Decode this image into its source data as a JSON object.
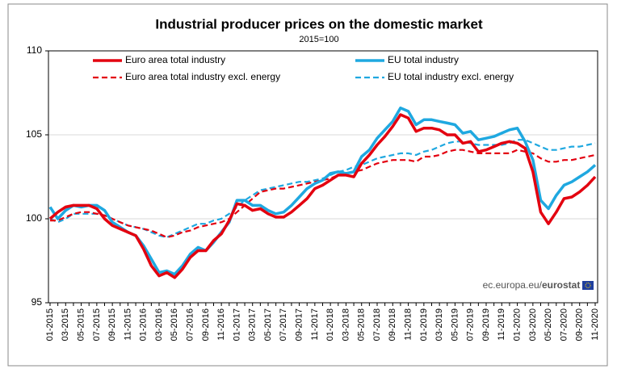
{
  "chart_data": {
    "type": "line",
    "title": "Industrial producer prices on the domestic market",
    "subtitle": "2015=100",
    "source": "ec.europa.eu/",
    "source_brand": "eurostat",
    "categories": [
      "01-2015",
      null,
      "03-2015",
      null,
      "05-2015",
      null,
      "07-2015",
      null,
      "09-2015",
      null,
      "11-2015",
      null,
      "01-2016",
      null,
      "03-2016",
      null,
      "05-2016",
      null,
      "07-2016",
      null,
      "09-2016",
      null,
      "11-2016",
      null,
      "01-2017",
      null,
      "03-2017",
      null,
      "05-2017",
      null,
      "07-2017",
      null,
      "09-2017",
      null,
      "11-2017",
      null,
      "01-2018",
      null,
      "03-2018",
      null,
      "05-2018",
      null,
      "07-2018",
      null,
      "09-2018",
      null,
      "11-2018",
      null,
      "01-2019",
      null,
      "03-2019",
      null,
      "05-2019",
      null,
      "07-2019",
      null,
      "09-2019",
      null,
      "11-2019",
      null,
      "01-2020",
      null,
      "03-2020",
      null,
      "05-2020",
      null,
      "07-2020",
      null,
      "09-2020",
      null,
      "11-2020"
    ],
    "series": [
      {
        "name": "Euro area total industry",
        "color": "#e3000f",
        "dashed": false,
        "values": [
          100.0,
          100.4,
          100.7,
          100.8,
          100.8,
          100.8,
          100.6,
          100.0,
          99.6,
          99.4,
          99.2,
          99.0,
          98.2,
          97.2,
          96.6,
          96.8,
          96.5,
          97.0,
          97.7,
          98.1,
          98.1,
          98.7,
          99.1,
          99.9,
          100.9,
          100.8,
          100.5,
          100.6,
          100.3,
          100.1,
          100.1,
          100.4,
          100.8,
          101.2,
          101.8,
          102.0,
          102.3,
          102.6,
          102.6,
          102.5,
          103.3,
          103.8,
          104.4,
          104.9,
          105.5,
          106.2,
          106.0,
          105.2,
          105.4,
          105.4,
          105.3,
          105.0,
          105.0,
          104.5,
          104.6,
          104.0,
          104.1,
          104.3,
          104.5,
          104.6,
          104.5,
          104.2,
          102.8,
          100.4,
          99.7,
          100.4,
          101.2,
          101.3,
          101.6,
          102.0,
          102.5
        ]
      },
      {
        "name": "EU total industry",
        "color": "#1fa8e0",
        "dashed": false,
        "values": [
          100.7,
          100.0,
          100.5,
          100.8,
          100.7,
          100.8,
          100.8,
          100.5,
          99.8,
          99.5,
          99.2,
          99.0,
          98.4,
          97.6,
          96.8,
          96.9,
          96.7,
          97.2,
          97.9,
          98.3,
          98.1,
          98.6,
          99.2,
          99.8,
          101.1,
          101.1,
          100.8,
          100.8,
          100.5,
          100.3,
          100.4,
          100.8,
          101.3,
          101.8,
          102.1,
          102.3,
          102.7,
          102.8,
          102.7,
          102.8,
          103.7,
          104.1,
          104.8,
          105.3,
          105.8,
          106.6,
          106.4,
          105.6,
          105.9,
          105.9,
          105.8,
          105.7,
          105.6,
          105.1,
          105.2,
          104.7,
          104.8,
          104.9,
          105.1,
          105.3,
          105.4,
          104.6,
          103.5,
          101.1,
          100.6,
          101.4,
          102.0,
          102.2,
          102.5,
          102.8,
          103.2
        ]
      },
      {
        "name": "Euro area total industry excl. energy",
        "color": "#e3000f",
        "dashed": true,
        "values": [
          99.9,
          99.9,
          100.1,
          100.3,
          100.4,
          100.4,
          100.3,
          100.2,
          100.0,
          99.8,
          99.6,
          99.5,
          99.4,
          99.3,
          99.1,
          98.9,
          99.0,
          99.2,
          99.3,
          99.5,
          99.6,
          99.7,
          99.8,
          100.0,
          100.4,
          100.8,
          101.2,
          101.6,
          101.7,
          101.8,
          101.8,
          101.9,
          102.0,
          102.1,
          102.2,
          102.3,
          102.4,
          102.6,
          102.7,
          102.8,
          102.9,
          103.1,
          103.3,
          103.4,
          103.5,
          103.5,
          103.5,
          103.4,
          103.7,
          103.7,
          103.8,
          104.0,
          104.1,
          104.1,
          104.0,
          103.9,
          103.9,
          103.9,
          103.9,
          103.9,
          104.1,
          104.0,
          103.9,
          103.6,
          103.4,
          103.4,
          103.5,
          103.5,
          103.6,
          103.7,
          103.8
        ]
      },
      {
        "name": "EU total industry excl. energy",
        "color": "#1fa8e0",
        "dashed": true,
        "values": [
          100.0,
          99.8,
          100.0,
          100.3,
          100.3,
          100.3,
          100.3,
          100.2,
          100.0,
          99.8,
          99.6,
          99.5,
          99.4,
          99.2,
          99.0,
          98.9,
          99.1,
          99.3,
          99.5,
          99.7,
          99.7,
          99.9,
          100.0,
          100.3,
          100.7,
          101.1,
          101.4,
          101.7,
          101.8,
          101.9,
          102.0,
          102.1,
          102.2,
          102.2,
          102.3,
          102.4,
          102.6,
          102.8,
          102.9,
          103.1,
          103.2,
          103.4,
          103.6,
          103.7,
          103.8,
          103.9,
          103.9,
          103.8,
          104.0,
          104.1,
          104.3,
          104.5,
          104.6,
          104.6,
          104.5,
          104.4,
          104.4,
          104.4,
          104.4,
          104.5,
          104.7,
          104.7,
          104.5,
          104.3,
          104.1,
          104.1,
          104.2,
          104.3,
          104.3,
          104.4,
          104.5
        ]
      }
    ],
    "ylim": [
      95,
      110
    ],
    "yticks": [
      95,
      100,
      105,
      110
    ],
    "grid": true
  }
}
